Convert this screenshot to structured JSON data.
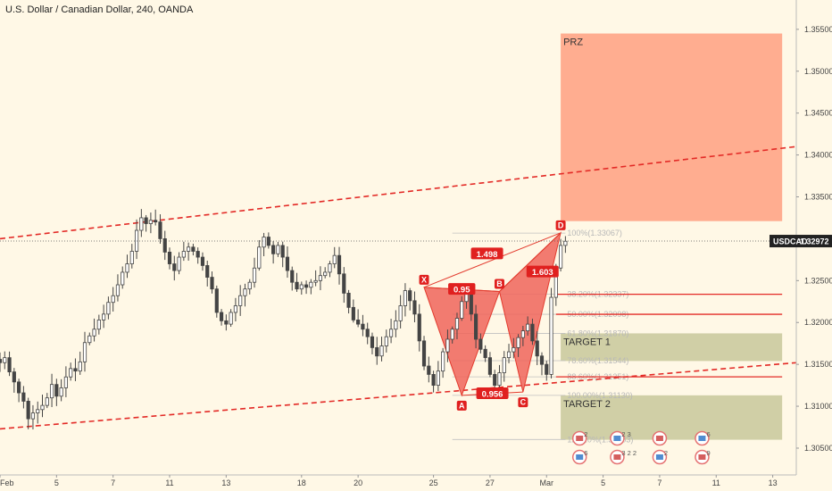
{
  "header": {
    "title": "U.S. Dollar / Canadian Dollar, 240, OANDA"
  },
  "colors": {
    "background": "#fff8e6",
    "candle": "#444444",
    "pattern_fill": "#f0655a",
    "pattern_line": "#e33b2e",
    "label_bg": "#e0201f",
    "prz_fill": "#ffa98b",
    "target_fill": "#c8c89a",
    "channel": "#e32a26",
    "fib": "#c0c0c0"
  },
  "chart_data": {
    "type": "candlestick",
    "symbol": "USDCAD",
    "current_price": 1.32972,
    "current_price_label": "1.32972",
    "ylim": [
      1.3018,
      1.3585
    ],
    "y_ticks": [
      "1.30500",
      "1.31000",
      "1.31500",
      "1.32000",
      "1.32500",
      "1.33000",
      "1.33500",
      "1.34000",
      "1.34500",
      "1.35000",
      "1.35500"
    ],
    "x_ticks": [
      {
        "label": "Feb",
        "i": 0
      },
      {
        "label": "5",
        "i": 12
      },
      {
        "label": "7",
        "i": 24
      },
      {
        "label": "11",
        "i": 36
      },
      {
        "label": "13",
        "i": 48
      },
      {
        "label": "18",
        "i": 64
      },
      {
        "label": "20",
        "i": 76
      },
      {
        "label": "25",
        "i": 92
      },
      {
        "label": "27",
        "i": 104
      },
      {
        "label": "Mar",
        "i": 116
      },
      {
        "label": "5",
        "i": 128
      },
      {
        "label": "7",
        "i": 140
      },
      {
        "label": "11",
        "i": 152
      },
      {
        "label": "13",
        "i": 164
      }
    ],
    "x_domain": [
      0,
      169
    ],
    "closes": [
      1.3152,
      1.3158,
      1.3141,
      1.3129,
      1.3116,
      1.3106,
      1.3085,
      1.3092,
      1.3096,
      1.3101,
      1.311,
      1.3126,
      1.3112,
      1.3122,
      1.3135,
      1.3145,
      1.3142,
      1.3153,
      1.3176,
      1.3184,
      1.3192,
      1.3203,
      1.321,
      1.3224,
      1.3232,
      1.3245,
      1.326,
      1.327,
      1.3285,
      1.331,
      1.3325,
      1.3318,
      1.3322,
      1.332,
      1.33,
      1.3284,
      1.327,
      1.3262,
      1.3278,
      1.3285,
      1.329,
      1.3285,
      1.3278,
      1.3268,
      1.3254,
      1.324,
      1.3212,
      1.3202,
      1.3198,
      1.3212,
      1.322,
      1.3232,
      1.324,
      1.3248,
      1.3265,
      1.329,
      1.3302,
      1.3292,
      1.3282,
      1.3292,
      1.3278,
      1.3262,
      1.3248,
      1.324,
      1.3245,
      1.3242,
      1.3248,
      1.325,
      1.3256,
      1.326,
      1.327,
      1.328,
      1.3258,
      1.3235,
      1.3218,
      1.3203,
      1.3198,
      1.3192,
      1.3183,
      1.317,
      1.316,
      1.3172,
      1.3183,
      1.3192,
      1.3202,
      1.322,
      1.3238,
      1.3226,
      1.321,
      1.3178,
      1.3148,
      1.3138,
      1.3125,
      1.3142,
      1.3165,
      1.318,
      1.3192,
      1.3205,
      1.3225,
      1.3236,
      1.321,
      1.318,
      1.3168,
      1.3158,
      1.3138,
      1.3125,
      1.314,
      1.3158,
      1.3165,
      1.317,
      1.3182,
      1.319,
      1.3198,
      1.3178,
      1.316,
      1.315,
      1.3138,
      1.323,
      1.3265,
      1.3292,
      1.3297
    ],
    "harmonic_pattern": {
      "points": [
        {
          "label": "X",
          "i": 90,
          "price": 1.3242
        },
        {
          "label": "A",
          "i": 98,
          "price": 1.3113
        },
        {
          "label": "B",
          "i": 106,
          "price": 1.3237
        },
        {
          "label": "C",
          "i": 111,
          "price": 1.3117
        },
        {
          "label": "D",
          "i": 119,
          "price": 1.3307
        }
      ],
      "ratios": [
        {
          "label": "0.95",
          "between": [
            "X",
            "B"
          ]
        },
        {
          "label": "0.956",
          "between": [
            "A",
            "C"
          ]
        },
        {
          "label": "1.498",
          "between": [
            "X",
            "D"
          ]
        },
        {
          "label": "1.603",
          "between": [
            "B",
            "D"
          ]
        }
      ]
    },
    "fib_levels": [
      {
        "label": "100%(1.33067)",
        "price": 1.33067
      },
      {
        "label": "38.20%(1.32337)",
        "price": 1.32337
      },
      {
        "label": "50.00%(1.32098)",
        "price": 1.32098
      },
      {
        "label": "61.80%(1.31870)",
        "price": 1.3187
      },
      {
        "label": "78.60%(1.31544)",
        "price": 1.31544
      },
      {
        "label": "88.60%(1.31351)",
        "price": 1.31351
      },
      {
        "label": "100.00%(1.31130)",
        "price": 1.3113
      },
      {
        "label": "127.20%(1.30603)",
        "price": 1.30603
      }
    ],
    "zones": [
      {
        "label": "PRZ",
        "from": 1.3321,
        "to": 1.3545
      },
      {
        "label": "TARGET 1",
        "from": 1.3154,
        "to": 1.3187
      },
      {
        "label": "TARGET 2",
        "from": 1.306,
        "to": 1.3113
      }
    ],
    "target_lines": [
      1.32337,
      1.32098,
      1.31351
    ],
    "channel": {
      "upper": [
        {
          "i": 0,
          "price": 1.33
        },
        {
          "i": 169,
          "price": 1.341
        }
      ],
      "lower": [
        {
          "i": 0,
          "price": 1.3073
        },
        {
          "i": 169,
          "price": 1.3152
        }
      ]
    }
  },
  "events": {
    "row1": [
      "2",
      "2 3",
      "",
      "6"
    ],
    "row2": [
      "6",
      "3 2 2",
      "2",
      "9"
    ]
  }
}
